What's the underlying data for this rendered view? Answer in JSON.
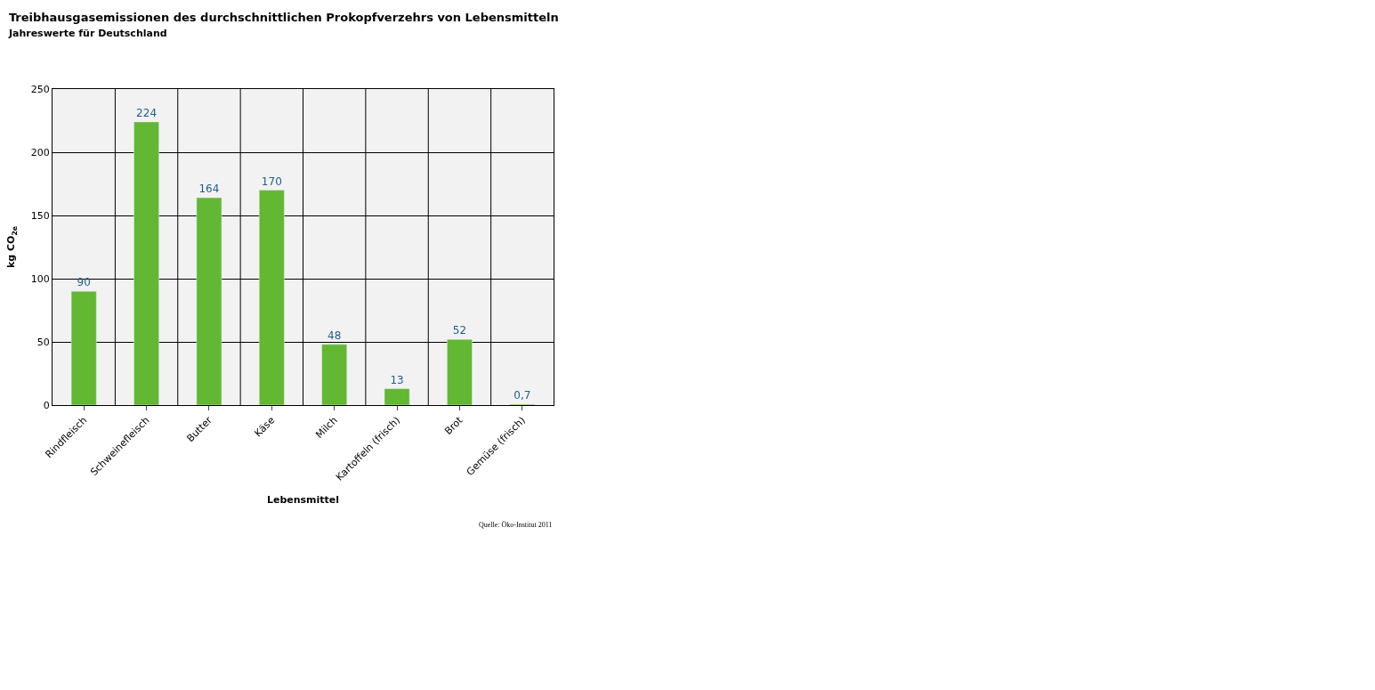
{
  "chart_data": {
    "type": "bar",
    "title": "Treibhausgasemissionen des durchschnittlichen Prokopfverzehrs von Lebensmitteln",
    "subtitle": "Jahreswerte für Deutschland",
    "xlabel": "Lebensmittel",
    "ylabel": "kg CO$_{2e}$",
    "categories": [
      "Rindfleisch",
      "Schweinefleisch",
      "Butter",
      "Käse",
      "Milch",
      "Kartoffeln (frisch)",
      "Brot",
      "Gemüse (frisch)"
    ],
    "values": [
      90,
      224,
      164,
      170,
      48,
      13,
      52,
      0.7
    ],
    "value_labels": [
      "90",
      "224",
      "164",
      "170",
      "48",
      "13",
      "52",
      "0,7"
    ],
    "color": "#62b733",
    "ylim": [
      0,
      250
    ],
    "yticks": [
      0,
      50,
      100,
      150,
      200,
      250
    ],
    "grid": true,
    "annotations": [
      "Quelle: Öko-Institut 2011"
    ]
  }
}
